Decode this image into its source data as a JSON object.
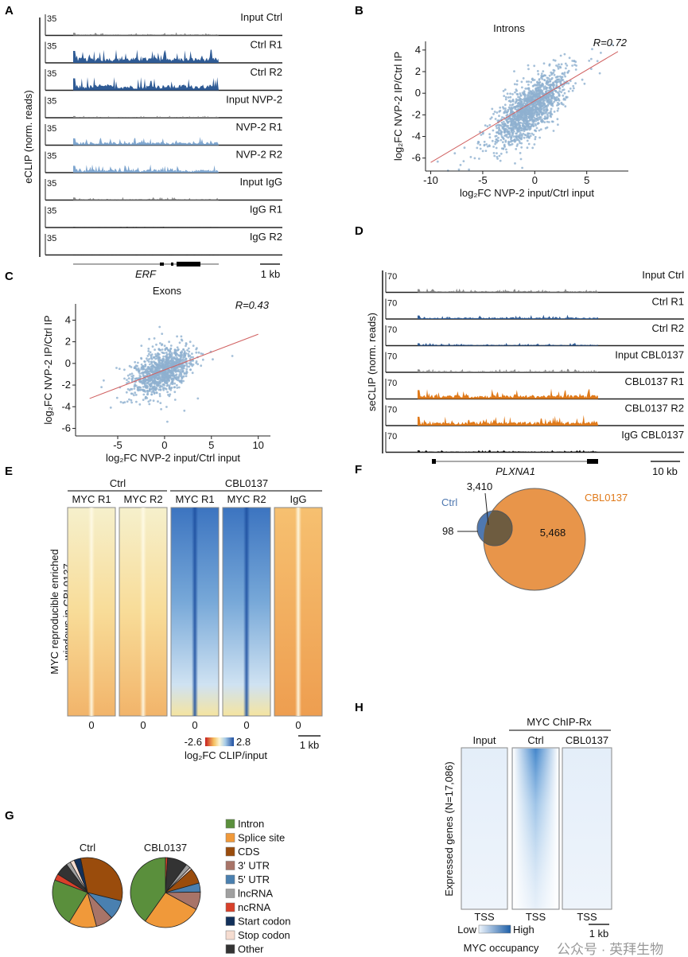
{
  "panels": {
    "A": {
      "label": "A",
      "ylabel": "eCLIP (norm. reads)",
      "scale_max": "35",
      "tracks": [
        {
          "name": "Input Ctrl",
          "color": "#8a8a8a",
          "level": 0.15
        },
        {
          "name": "Ctrl R1",
          "color": "#2f5b95",
          "level": 0.7
        },
        {
          "name": "Ctrl R2",
          "color": "#2f5b95",
          "level": 0.7
        },
        {
          "name": "Input NVP-2",
          "color": "#8a8a8a",
          "level": 0.1
        },
        {
          "name": "NVP-2 R1",
          "color": "#7fa6cf",
          "level": 0.4
        },
        {
          "name": "NVP-2 R2",
          "color": "#7fa6cf",
          "level": 0.4
        },
        {
          "name": "Input IgG",
          "color": "#8a8a8a",
          "level": 0.15
        },
        {
          "name": "IgG R1",
          "color": "#111111",
          "level": 0.03
        },
        {
          "name": "IgG R2",
          "color": "#111111",
          "level": 0.02
        }
      ],
      "gene": "ERF",
      "scalebar": "1 kb"
    },
    "D": {
      "label": "D",
      "ylabel": "seCLIP (norm. reads)",
      "scale_max": "70",
      "tracks": [
        {
          "name": "Input Ctrl",
          "color": "#8a8a8a",
          "level": 0.2
        },
        {
          "name": "Ctrl R1",
          "color": "#2f5b95",
          "level": 0.22
        },
        {
          "name": "Ctrl R2",
          "color": "#2f5b95",
          "level": 0.15
        },
        {
          "name": "Input CBL0137",
          "color": "#8a8a8a",
          "level": 0.18
        },
        {
          "name": "CBL0137 R1",
          "color": "#e07a1a",
          "level": 0.55
        },
        {
          "name": "CBL0137 R2",
          "color": "#e07a1a",
          "level": 0.55
        },
        {
          "name": "IgG CBL0137",
          "color": "#111111",
          "level": 0.12
        }
      ],
      "gene": "PLXNA1",
      "scalebar": "10 kb"
    },
    "E": {
      "label": "E",
      "ylabel_line1": "MYC reproducible enriched",
      "ylabel_line2": "windows in CBL0137",
      "groups": [
        "Ctrl",
        "CBL0137"
      ],
      "columns": [
        "MYC R1",
        "MYC R2",
        "MYC R1",
        "MYC R2",
        "IgG"
      ],
      "center_label": "0",
      "colorbar_min": "-2.6",
      "colorbar_max": "2.8",
      "colorbar_label": "log₂FC CLIP/input",
      "scalebar": "1 kb"
    },
    "F": {
      "label": "F"
    },
    "G": {
      "label": "G"
    },
    "H": {
      "label": "H",
      "group": "MYC ChIP-Rx",
      "columns": [
        "Input",
        "Ctrl",
        "CBL0137"
      ],
      "ylabel": "Expressed genes (N=17,086)",
      "tick": "TSS",
      "colorbar_low": "Low",
      "colorbar_high": "High",
      "colorbar_label": "MYC occupancy",
      "scalebar": "1 kb"
    }
  },
  "watermark": "公众号 · 英拜生物",
  "chart_data": [
    {
      "panel": "B",
      "type": "scatter",
      "label": "B",
      "title": "Introns",
      "xlabel": "log₂FC NVP-2 input/Ctrl input",
      "ylabel": "log₂FC NVP-2 IP/Ctrl IP",
      "annotation": "R=0.72",
      "xlim": [
        -10.5,
        9
      ],
      "ylim": [
        -7.2,
        4.8
      ],
      "xticks": [
        -10,
        -5,
        0,
        5
      ],
      "yticks": [
        4,
        2,
        0,
        -2,
        -4,
        -6
      ],
      "n_points": 1500,
      "x_center": -0.5,
      "x_sd": 1.6,
      "y_center": -1.5,
      "y_sd": 1.6,
      "correlation": 0.72,
      "fit": {
        "slope": 0.57,
        "intercept": -0.7,
        "x_range": [
          -10,
          8
        ]
      },
      "point_color": "#8fb0d0",
      "line_color": "#d06060"
    },
    {
      "panel": "C",
      "type": "scatter",
      "label": "C",
      "title": "Exons",
      "xlabel": "log₂FC NVP-2 input/Ctrl input",
      "ylabel": "log₂FC NVP-2 IP/Ctrl IP",
      "annotation": "R=0.43",
      "xlim": [
        -9.5,
        11.3
      ],
      "ylim": [
        -6.7,
        5.5
      ],
      "xticks": [
        -5,
        0,
        5,
        10
      ],
      "yticks": [
        4,
        2,
        0,
        -2,
        -4,
        -6
      ],
      "n_points": 1100,
      "x_center": -0.2,
      "x_sd": 1.5,
      "y_center": -0.7,
      "y_sd": 1.0,
      "correlation": 0.43,
      "fit": {
        "slope": 0.33,
        "intercept": -0.6,
        "x_range": [
          -8,
          10
        ]
      },
      "point_color": "#8fb0d0",
      "line_color": "#d06060"
    },
    {
      "panel": "F",
      "type": "venn",
      "sets": [
        {
          "name": "Ctrl",
          "only": "98",
          "color": "#4f78b0"
        },
        {
          "name": "CBL0137",
          "only": "5,468",
          "color": "#e8954a"
        }
      ],
      "overlap": "3,410",
      "values": {
        "ctrl_only": 98,
        "overlap": 3410,
        "cbl0137_only": 5468
      }
    },
    {
      "panel": "G",
      "type": "pie",
      "categories": [
        "Intron",
        "Splice site",
        "CDS",
        "3' UTR",
        "5' UTR",
        "lncRNA",
        "ncRNA",
        "Start codon",
        "Stop codon",
        "Other"
      ],
      "colors": [
        "#5a8f3c",
        "#f0993a",
        "#9a4c0c",
        "#a87468",
        "#4a80b0",
        "#a0a0a0",
        "#d8402a",
        "#12305a",
        "#f5dcd0",
        "#333333"
      ],
      "series": [
        {
          "name": "Ctrl",
          "order": [
            2,
            4,
            3,
            1,
            0,
            6,
            9,
            5,
            8,
            7
          ],
          "values": [
            22,
            13,
            32,
            8,
            9,
            2,
            3,
            3,
            2,
            6
          ]
        },
        {
          "name": "CBL0137",
          "order": [
            6,
            9,
            5,
            8,
            2,
            4,
            3,
            1,
            0
          ],
          "values": [
            39,
            26,
            7,
            8,
            4,
            2,
            1,
            0,
            1,
            9
          ]
        }
      ]
    },
    {
      "panel": "E",
      "type": "heatmap",
      "columns": [
        "Ctrl MYC R1",
        "Ctrl MYC R2",
        "CBL0137 MYC R1",
        "CBL0137 MYC R2",
        "CBL0137 IgG"
      ],
      "color_range": [
        -2.6,
        2.8
      ]
    },
    {
      "panel": "H",
      "type": "heatmap",
      "columns": [
        "Input",
        "Ctrl",
        "CBL0137"
      ]
    }
  ]
}
